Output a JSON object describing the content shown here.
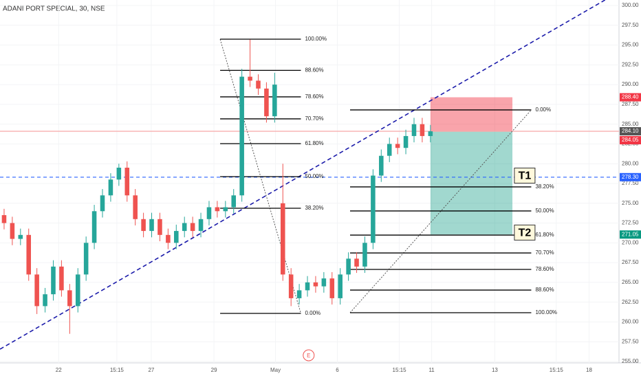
{
  "chart_data": {
    "type": "candlestick",
    "title": "ADANI PORT SPECIAL, 30, NSE",
    "x": [
      0,
      2,
      4,
      6,
      8,
      10,
      12,
      14,
      16,
      18,
      20,
      22,
      24,
      26,
      28,
      30,
      32,
      34,
      36,
      38,
      40,
      42,
      44,
      46,
      48,
      50,
      52,
      54,
      56,
      58,
      60,
      62,
      64,
      66,
      68,
      70,
      72,
      74,
      76,
      78,
      80,
      82,
      84,
      86,
      88,
      90,
      92,
      94,
      96,
      98,
      100,
      102,
      104
    ],
    "open": [
      273.5,
      272.5,
      270.5,
      271,
      266,
      262,
      263.5,
      267,
      264,
      262,
      266,
      270,
      274,
      276,
      278,
      279.5,
      276,
      273,
      271.5,
      273,
      271,
      270,
      271.5,
      272.5,
      271.5,
      273,
      274.5,
      274,
      274.5,
      276,
      291,
      290.5,
      289.5,
      286,
      275,
      266,
      263,
      264,
      265,
      264.5,
      265.5,
      263,
      266,
      268,
      267,
      270,
      278.5,
      281,
      282.5,
      282,
      283.5,
      285,
      283.5
    ],
    "high": [
      274.3,
      273.3,
      271.8,
      271.8,
      266.8,
      264.3,
      267.8,
      267.8,
      264.8,
      266.8,
      270.8,
      274.8,
      276.8,
      278.8,
      280,
      280.3,
      276.8,
      273.8,
      273.8,
      273.8,
      271.8,
      272.3,
      273.3,
      273.3,
      273.8,
      275.3,
      275.3,
      275.3,
      276.8,
      292,
      295.7,
      291.3,
      290.3,
      291.5,
      280,
      266.8,
      264.8,
      265.8,
      265.8,
      266.3,
      266.3,
      266.8,
      268.8,
      268.8,
      270.8,
      279.3,
      281.8,
      283.3,
      283.3,
      284.3,
      285.8,
      285.8,
      284.9
    ],
    "low": [
      271.7,
      269.7,
      269.7,
      265.2,
      261,
      261.2,
      262.7,
      263.2,
      258.5,
      261.2,
      265.2,
      269.2,
      273.2,
      275.2,
      277.2,
      275.2,
      272.2,
      270.7,
      270.7,
      270.2,
      269.2,
      269.2,
      270.7,
      270.7,
      270.7,
      272.2,
      273.2,
      273.2,
      273.7,
      275.2,
      289.7,
      288.7,
      285.2,
      285.2,
      265.2,
      262,
      262.2,
      263.2,
      263.7,
      263.7,
      262.2,
      262.2,
      265.2,
      266.2,
      266.2,
      269.2,
      277.7,
      280.2,
      281.2,
      281.2,
      282.7,
      282.7,
      282.7
    ],
    "close": [
      272.5,
      270.5,
      271,
      266,
      262,
      263.5,
      267,
      264,
      262,
      266,
      270,
      274,
      276,
      278,
      279.5,
      276,
      273,
      271.5,
      273,
      271,
      270,
      271.5,
      272.5,
      271.5,
      273,
      274.5,
      274,
      274.5,
      276,
      291,
      290.5,
      289.5,
      286,
      290,
      266,
      263,
      264,
      265,
      264.5,
      265.5,
      263,
      266,
      268,
      267,
      270,
      278.5,
      281,
      282.5,
      282,
      283.5,
      285,
      283.5,
      284.1
    ],
    "up_color": "#26a69a",
    "down_color": "#ef5350",
    "xlim": [
      -1,
      150
    ],
    "ylim": [
      255,
      300
    ],
    "xticks": [
      {
        "value": 13.3,
        "label": "22"
      },
      {
        "value": 27.5,
        "label": "15:15"
      },
      {
        "value": 35.9,
        "label": "27"
      },
      {
        "value": 51.2,
        "label": "29"
      },
      {
        "value": 66.2,
        "label": "May"
      },
      {
        "value": 81.3,
        "label": "6"
      },
      {
        "value": 96.4,
        "label": "15:15"
      },
      {
        "value": 104.3,
        "label": "11"
      },
      {
        "value": 119.7,
        "label": "13"
      },
      {
        "value": 134.7,
        "label": "15:15"
      },
      {
        "value": 142.7,
        "label": "18"
      }
    ],
    "yticks": [
      {
        "value": 300,
        "label": "300.00"
      },
      {
        "value": 297.5,
        "label": "297.50"
      },
      {
        "value": 295,
        "label": "295.00"
      },
      {
        "value": 292.5,
        "label": "292.50"
      },
      {
        "value": 290,
        "label": "290.00"
      },
      {
        "value": 287.5,
        "label": "287.50"
      },
      {
        "value": 285,
        "label": "285.00"
      },
      {
        "value": 282.5,
        "label": "282.50"
      },
      {
        "value": 280,
        "label": "280.00"
      },
      {
        "value": 277.5,
        "label": "277.50"
      },
      {
        "value": 275,
        "label": "275.00"
      },
      {
        "value": 272.5,
        "label": "272.50"
      },
      {
        "value": 270,
        "label": "270.00"
      },
      {
        "value": 267.5,
        "label": "267.50"
      },
      {
        "value": 265,
        "label": "265.00"
      },
      {
        "value": 262.5,
        "label": "262.50"
      },
      {
        "value": 260,
        "label": "260.00"
      },
      {
        "value": 257.5,
        "label": "257.50"
      },
      {
        "value": 255,
        "label": "255.00"
      }
    ],
    "price_tags": [
      {
        "value": 288.4,
        "label": "288.40",
        "color": "#f23645"
      },
      {
        "value": 284.1,
        "label": "284.10",
        "color": "#555555"
      },
      {
        "value": 284.05,
        "label": "284.05",
        "color": "#f23645"
      },
      {
        "value": 278.3,
        "label": "278.30",
        "color": "#2962ff"
      },
      {
        "value": 271.05,
        "label": "271.05",
        "color": "#089981"
      }
    ],
    "hlines": [
      {
        "value": 278.3,
        "color": "#2962ff",
        "style": "dashed"
      },
      {
        "value": 284.1,
        "color": "#f7a8a8",
        "style": "solid"
      }
    ],
    "trendline": {
      "x": [
        -1,
        146.6
      ],
      "y": [
        256.56,
        300.7
      ],
      "color": "#1a1aaa"
    },
    "fibs": [
      {
        "x": [
          52.7,
          72.4
        ],
        "levels": [
          {
            "label": "100.00%",
            "value": 295.74
          },
          {
            "label": "88.60%",
            "value": 291.8
          },
          {
            "label": "78.60%",
            "value": 288.45
          },
          {
            "label": "70.70%",
            "value": 285.67
          },
          {
            "label": "61.80%",
            "value": 282.54
          },
          {
            "label": "50.00%",
            "value": 278.37
          },
          {
            "label": "38.20%",
            "value": 274.37
          },
          {
            "label": "0.00%",
            "value": 261.08
          }
        ]
      },
      {
        "x": [
          84.4,
          128.6
        ],
        "levels": [
          {
            "label": "0.00%",
            "value": 286.8
          },
          {
            "label": "38.20%",
            "value": 277.07
          },
          {
            "label": "50.00%",
            "value": 274.03
          },
          {
            "label": "61.80%",
            "value": 270.98
          },
          {
            "label": "70.70%",
            "value": 268.72
          },
          {
            "label": "78.60%",
            "value": 266.64
          },
          {
            "label": "88.60%",
            "value": 264.03
          },
          {
            "label": "100.00%",
            "value": 261.17
          }
        ]
      }
    ],
    "position": {
      "x": [
        104,
        124
      ],
      "entry": 284.05,
      "stop": 288.4,
      "target": 271.05
    },
    "targets": [
      {
        "text": "T1",
        "x": 127,
        "value": 278.5
      },
      {
        "text": "T2",
        "x": 127,
        "value": 271.3
      }
    ],
    "event": {
      "text": "E",
      "x": 74.3
    }
  }
}
